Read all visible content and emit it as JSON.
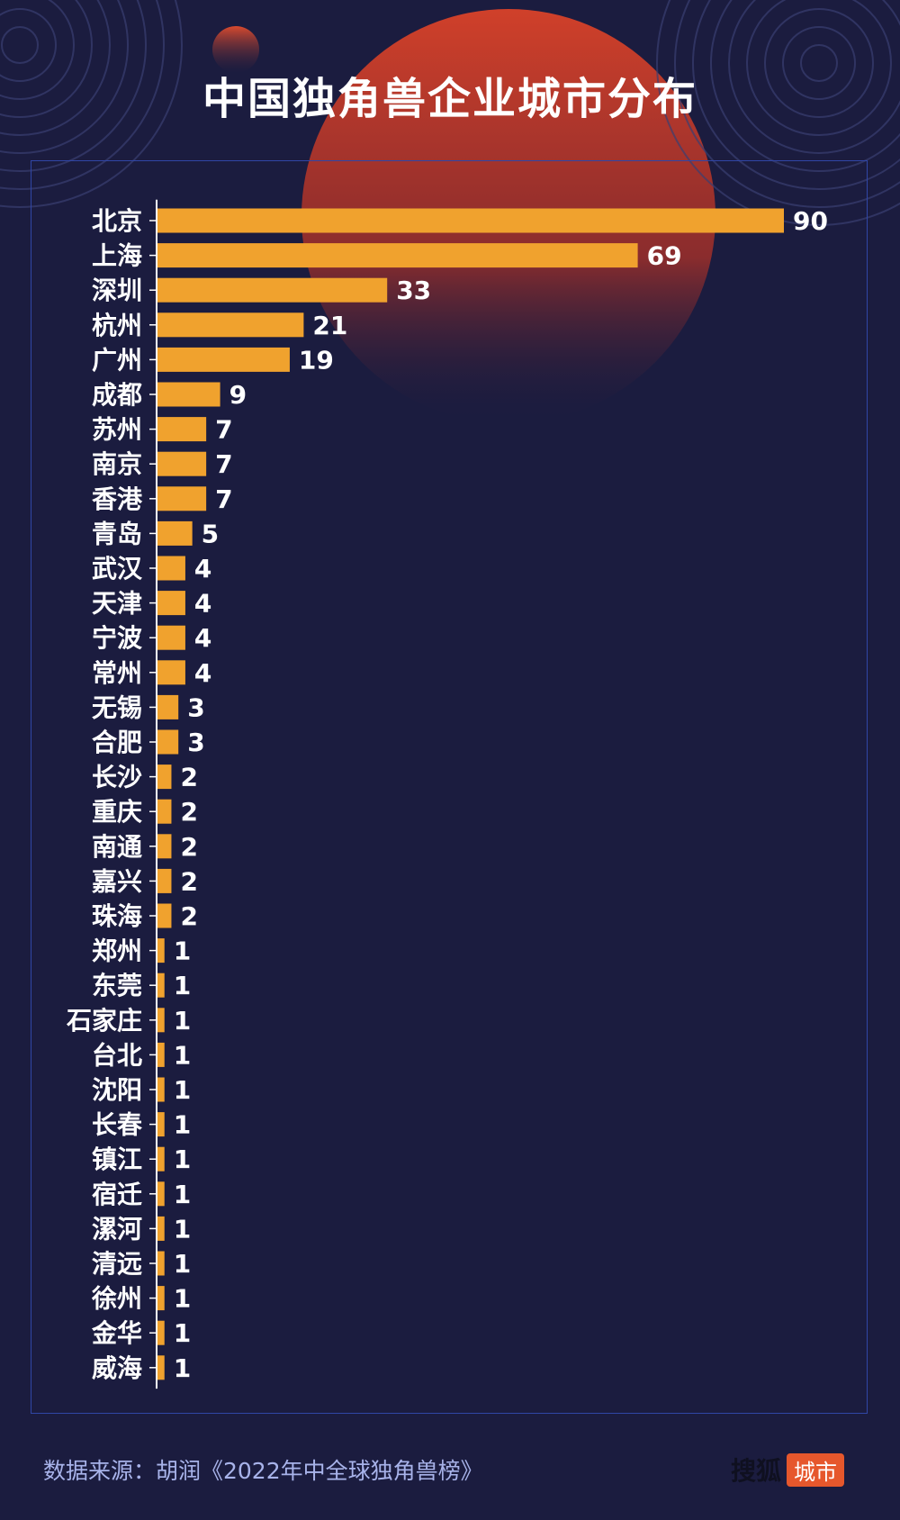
{
  "header": {
    "title": "中国独角兽企业城市分布"
  },
  "footer": {
    "source": "数据来源：胡润《2022年中全球独角兽榜》",
    "brand_main": "搜狐",
    "brand_badge": "城市"
  },
  "colors": {
    "background": "#1b1c3f",
    "bar": "#f0a22e",
    "axis": "#ffffff",
    "frame": "#3046a6",
    "sun": "#c23a28",
    "source_text": "#a8b3ea",
    "brand_badge": "#e6572c"
  },
  "chart_data": {
    "type": "bar",
    "orientation": "horizontal",
    "title": "中国独角兽企业城市分布",
    "categories": [
      "北京",
      "上海",
      "深圳",
      "杭州",
      "广州",
      "成都",
      "苏州",
      "南京",
      "香港",
      "青岛",
      "武汉",
      "天津",
      "宁波",
      "常州",
      "无锡",
      "合肥",
      "长沙",
      "重庆",
      "南通",
      "嘉兴",
      "珠海",
      "郑州",
      "东莞",
      "石家庄",
      "台北",
      "沈阳",
      "长春",
      "镇江",
      "宿迁",
      "漯河",
      "清远",
      "徐州",
      "金华",
      "威海"
    ],
    "values": [
      90,
      69,
      33,
      21,
      19,
      9,
      7,
      7,
      7,
      5,
      4,
      4,
      4,
      4,
      3,
      3,
      2,
      2,
      2,
      2,
      2,
      1,
      1,
      1,
      1,
      1,
      1,
      1,
      1,
      1,
      1,
      1,
      1,
      1
    ],
    "xlim": [
      0,
      90
    ],
    "grid": false,
    "data_labels": true
  }
}
